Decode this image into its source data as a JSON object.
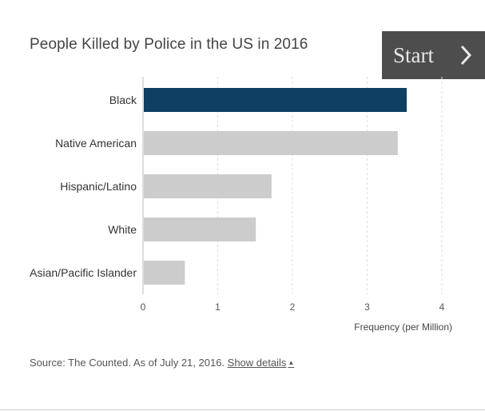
{
  "title": "People Killed by Police in the US in 2016",
  "start_button": {
    "label": "Start",
    "icon": "chevron-right-icon"
  },
  "source": {
    "text": "Source: The Counted. As of July 21, 2016.",
    "link_label": "Show details",
    "link_icon": "caret-up-icon"
  },
  "colors": {
    "highlight": "#0d4062",
    "default": "#cccccc",
    "grid": "#dddddd"
  },
  "chart_data": {
    "type": "bar",
    "orientation": "horizontal",
    "title": "People Killed by Police in the US in 2016",
    "categories": [
      "Black",
      "Native American",
      "Hispanic/Latino",
      "White",
      "Asian/Pacific Islander"
    ],
    "values": [
      3.53,
      3.41,
      1.72,
      1.51,
      0.56
    ],
    "highlighted": "Black",
    "xlabel": "Frequency (per Million)",
    "ylabel": "",
    "xlim": [
      0,
      4
    ],
    "xticks": [
      "0",
      "1",
      "2",
      "3",
      "4"
    ],
    "grid": true
  }
}
